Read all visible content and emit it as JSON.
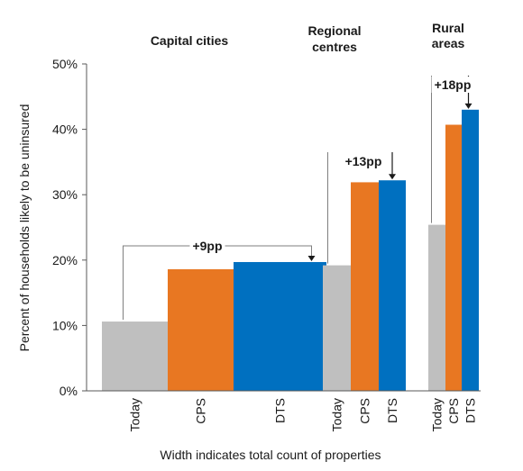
{
  "chart_data": {
    "type": "bar",
    "ylabel": "Percent of households likely to be uninsured",
    "xlabel": "Width indicates total count of properties",
    "ylim": [
      0,
      50
    ],
    "yticks": [
      "0%",
      "10%",
      "20%",
      "30%",
      "40%",
      "50%"
    ],
    "grid": false,
    "colors": {
      "Today": "#bfbfbf",
      "CPS": "#e87722",
      "DTS": "#0070c0",
      "annotation_line": "#7f7f7f"
    },
    "groups": [
      {
        "name": [
          "Capital cities"
        ],
        "annotation": "+9pp",
        "bars": [
          {
            "label": "Today",
            "value": 10.6
          },
          {
            "label": "CPS",
            "value": 18.6
          },
          {
            "label": "DTS",
            "value": 19.7
          }
        ]
      },
      {
        "name": [
          "Regional",
          "centres"
        ],
        "annotation": "+13pp",
        "bars": [
          {
            "label": "Today",
            "value": 19.2
          },
          {
            "label": "CPS",
            "value": 31.9
          },
          {
            "label": "DTS",
            "value": 32.2
          }
        ]
      },
      {
        "name": [
          "Rural",
          "areas"
        ],
        "annotation": "+18pp",
        "bars": [
          {
            "label": "Today",
            "value": 25.4
          },
          {
            "label": "CPS",
            "value": 40.7
          },
          {
            "label": "DTS",
            "value": 43.0
          }
        ]
      }
    ]
  }
}
